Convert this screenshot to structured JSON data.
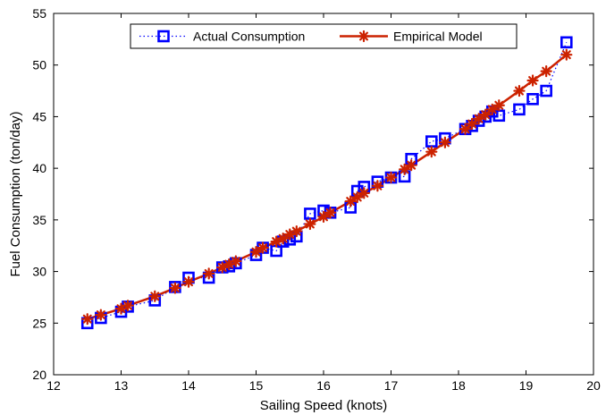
{
  "chart_data": {
    "type": "line",
    "title": "",
    "xlabel": "Sailing Speed (knots)",
    "ylabel": "Fuel Consumption (ton/day)",
    "xlim": [
      12,
      20
    ],
    "ylim": [
      20,
      55
    ],
    "xticks": [
      12,
      13,
      14,
      15,
      16,
      17,
      18,
      19,
      20
    ],
    "yticks": [
      20,
      25,
      30,
      35,
      40,
      45,
      50,
      55
    ],
    "grid": false,
    "legend_position": "top",
    "series": [
      {
        "name": "Actual Consumption",
        "style": "dotted line, square markers",
        "color": "#0000ff",
        "x": [
          12.5,
          12.7,
          13.0,
          13.1,
          13.5,
          13.8,
          14.0,
          14.3,
          14.5,
          14.6,
          14.7,
          15.0,
          15.1,
          15.3,
          15.4,
          15.5,
          15.6,
          15.8,
          16.0,
          16.1,
          16.4,
          16.5,
          16.6,
          16.8,
          17.0,
          17.2,
          17.3,
          17.6,
          17.8,
          18.1,
          18.2,
          18.3,
          18.4,
          18.5,
          18.6,
          18.9,
          19.1,
          19.3,
          19.6
        ],
        "y": [
          25.0,
          25.5,
          26.1,
          26.6,
          27.2,
          28.5,
          29.4,
          29.4,
          30.4,
          30.5,
          30.8,
          31.6,
          32.3,
          32.0,
          32.9,
          33.1,
          33.4,
          35.6,
          35.9,
          35.7,
          36.2,
          37.8,
          38.2,
          38.7,
          39.1,
          39.2,
          40.9,
          42.6,
          42.9,
          43.8,
          44.1,
          44.6,
          45.0,
          45.5,
          45.1,
          45.7,
          46.7,
          47.5,
          52.2
        ]
      },
      {
        "name": "Empirical Model",
        "style": "solid line, asterisk markers",
        "color": "#cc2200",
        "x": [
          12.5,
          12.7,
          13.0,
          13.1,
          13.5,
          13.8,
          14.0,
          14.3,
          14.5,
          14.6,
          14.7,
          15.0,
          15.1,
          15.3,
          15.4,
          15.5,
          15.6,
          15.8,
          16.0,
          16.1,
          16.4,
          16.5,
          16.6,
          16.8,
          17.0,
          17.2,
          17.3,
          17.6,
          17.8,
          18.1,
          18.2,
          18.3,
          18.4,
          18.5,
          18.6,
          18.9,
          19.1,
          19.3,
          19.6
        ],
        "y": [
          25.4,
          25.8,
          26.4,
          26.7,
          27.6,
          28.4,
          29.0,
          29.8,
          30.4,
          30.7,
          31.0,
          31.9,
          32.3,
          32.9,
          33.2,
          33.6,
          33.9,
          34.6,
          35.3,
          35.7,
          36.8,
          37.2,
          37.6,
          38.3,
          39.1,
          39.9,
          40.3,
          41.6,
          42.5,
          43.8,
          44.3,
          44.8,
          45.2,
          45.7,
          46.1,
          47.5,
          48.5,
          49.4,
          51.0
        ]
      }
    ]
  }
}
